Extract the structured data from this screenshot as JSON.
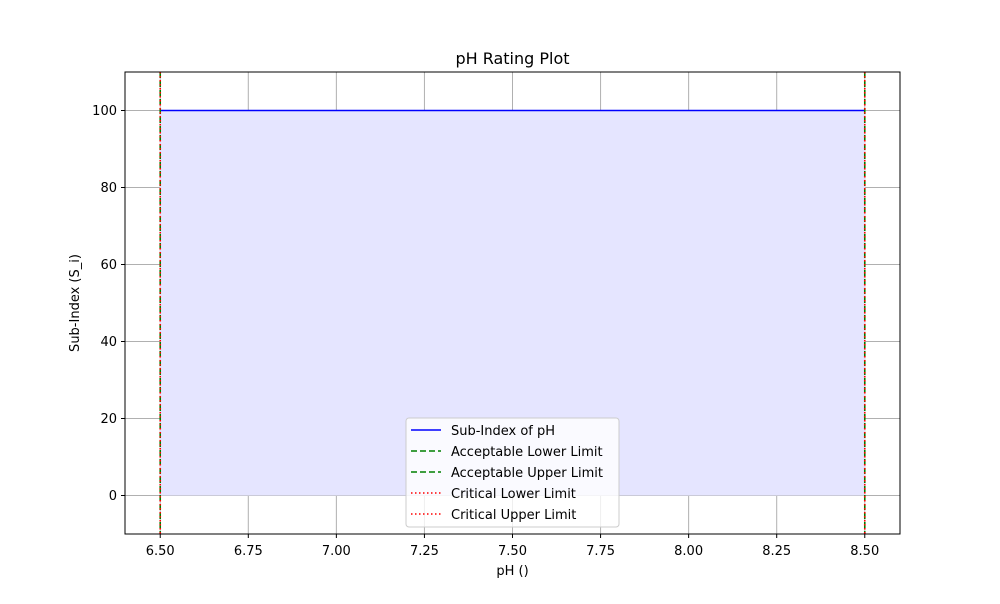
{
  "chart_data": {
    "type": "line",
    "title": "pH Rating Plot",
    "xlabel": "pH ()",
    "ylabel": "Sub-Index (S_i)",
    "xlim": [
      6.4,
      8.6
    ],
    "ylim": [
      -10,
      110
    ],
    "x_ticks": [
      6.5,
      6.75,
      7.0,
      7.25,
      7.5,
      7.75,
      8.0,
      8.25,
      8.5
    ],
    "x_tick_labels": [
      "6.50",
      "6.75",
      "7.00",
      "7.25",
      "7.50",
      "7.75",
      "8.00",
      "8.25",
      "8.50"
    ],
    "y_ticks": [
      0,
      20,
      40,
      60,
      80,
      100
    ],
    "y_tick_labels": [
      "0",
      "20",
      "40",
      "60",
      "80",
      "100"
    ],
    "grid": true,
    "legend_position": "lower-center",
    "series": [
      {
        "name": "Sub-Index of pH",
        "style": "solid",
        "color": "#0000ff",
        "x": [
          6.5,
          8.5
        ],
        "y": [
          100,
          100
        ],
        "fill_to": 0,
        "fill_color": "#e5e5ff"
      }
    ],
    "reference_lines": [
      {
        "name": "Acceptable Lower Limit",
        "orientation": "vertical",
        "x": 6.5,
        "style": "dashed",
        "color": "#008000"
      },
      {
        "name": "Acceptable Upper Limit",
        "orientation": "vertical",
        "x": 8.5,
        "style": "dashed",
        "color": "#008000"
      },
      {
        "name": "Critical Lower Limit",
        "orientation": "vertical",
        "x": 6.5,
        "style": "dotted",
        "color": "#ff0000"
      },
      {
        "name": "Critical Upper Limit",
        "orientation": "vertical",
        "x": 8.5,
        "style": "dotted",
        "color": "#ff0000"
      }
    ]
  }
}
